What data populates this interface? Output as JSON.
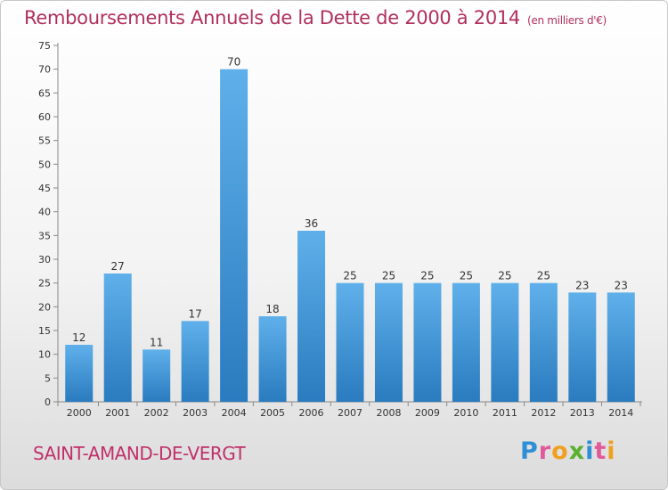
{
  "header": {
    "title": "Remboursements Annuels de la Dette de 2000 à 2014",
    "unit": "(en milliers d'€)"
  },
  "footer": {
    "commune": "SAINT-AMAND-DE-VERGT",
    "logo_text": "Proxiti"
  },
  "colors": {
    "bar_top": "#5fb0ea",
    "bar_bottom": "#2a7bbf",
    "title": "#b0305a"
  },
  "chart_data": {
    "type": "bar",
    "title": "Remboursements Annuels de la Dette de 2000 à 2014",
    "subtitle": "(en milliers d'€)",
    "xlabel": "",
    "ylabel": "",
    "categories": [
      "2000",
      "2001",
      "2002",
      "2003",
      "2004",
      "2005",
      "2006",
      "2007",
      "2008",
      "2009",
      "2010",
      "2011",
      "2012",
      "2013",
      "2014"
    ],
    "values": [
      12,
      27,
      11,
      17,
      70,
      18,
      36,
      25,
      25,
      25,
      25,
      25,
      25,
      23,
      23
    ],
    "ylim": [
      0,
      75
    ],
    "yticks": [
      0,
      5,
      10,
      15,
      20,
      25,
      30,
      35,
      40,
      45,
      50,
      55,
      60,
      65,
      70,
      75
    ],
    "grid": false,
    "legend": "none",
    "data_labels": true
  }
}
